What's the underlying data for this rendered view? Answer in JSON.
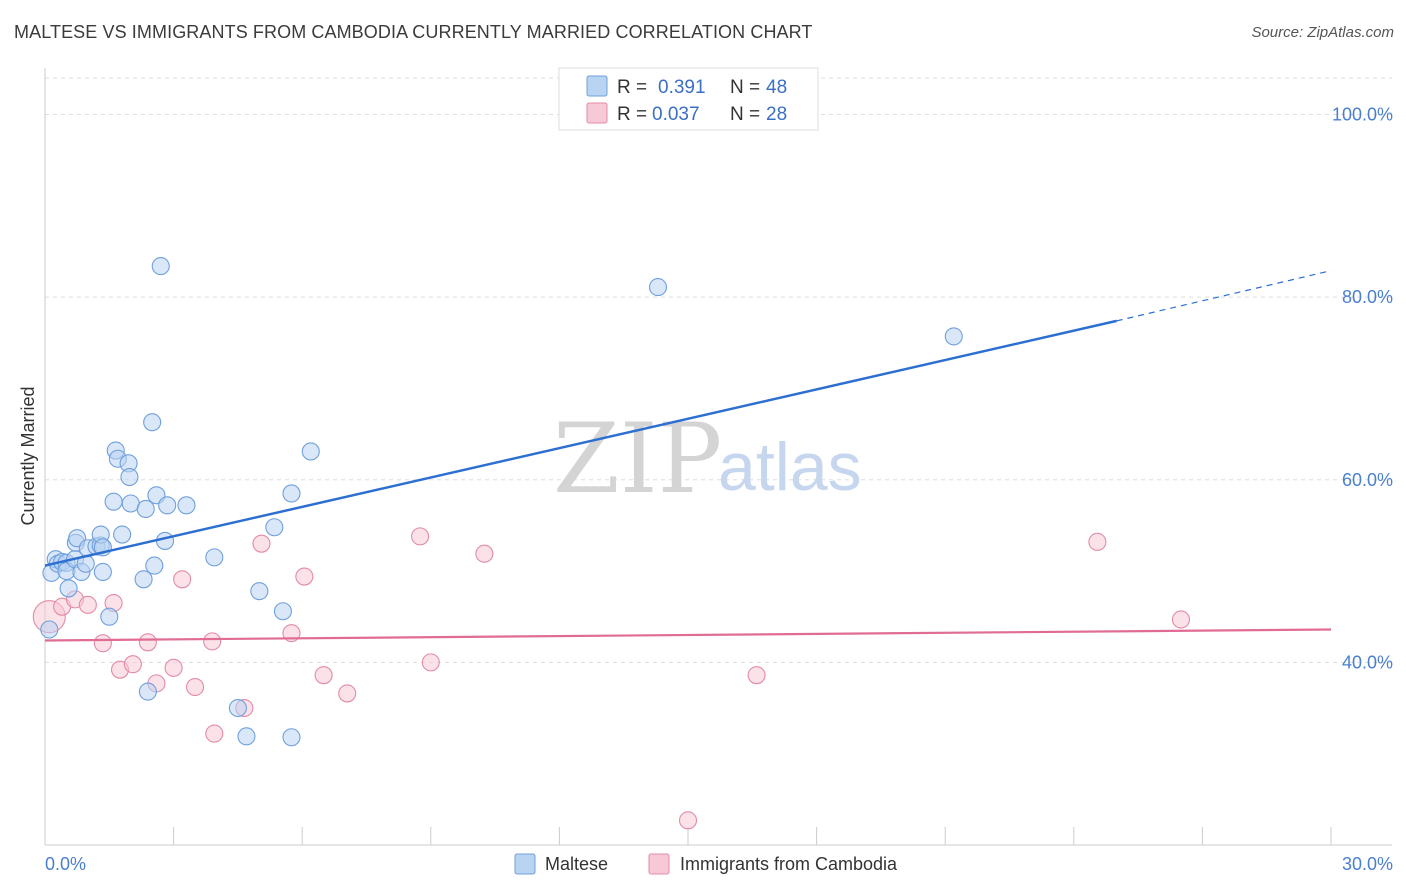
{
  "title": "MALTESE VS IMMIGRANTS FROM CAMBODIA CURRENTLY MARRIED CORRELATION CHART",
  "source": "Source: ZipAtlas.com",
  "watermark": {
    "zip": "ZIP",
    "atlas": "atlas"
  },
  "colors": {
    "maltese_fill": "#b9d3f3",
    "maltese_stroke": "#6fa0dc",
    "maltese_line": "#2c6fd1",
    "cambodia_fill": "#f7c9d6",
    "cambodia_stroke": "#e38ba6",
    "cambodia_line": "#e06b94",
    "grid": "#dddddd",
    "tick_label": "#4a7fd0"
  },
  "legend": {
    "rows": [
      {
        "r_label": "R =",
        "r_value": "0.391",
        "n_label": "N =",
        "n_value": "48"
      },
      {
        "r_label": "R =",
        "r_value": "0.037",
        "n_label": "N =",
        "n_value": "28"
      }
    ]
  },
  "bottom_legend": [
    "Maltese",
    "Immigrants from Cambodia"
  ],
  "chart_data": {
    "type": "scatter",
    "title": "MALTESE VS IMMIGRANTS FROM CAMBODIA CURRENTLY MARRIED CORRELATION CHART",
    "xlabel": "",
    "ylabel": "Currently Married",
    "xlim": [
      0,
      30
    ],
    "ylim": [
      20,
      104
    ],
    "x_tick_labels": [
      "0.0%",
      "30.0%"
    ],
    "y_ticks": [
      40,
      60,
      80,
      100
    ],
    "y_tick_labels": [
      "40.0%",
      "60.0%",
      "80.0%",
      "100.0%"
    ],
    "series": [
      {
        "name": "Maltese",
        "R": 0.391,
        "N": 48,
        "trend": {
          "x0": 0,
          "y0": 50.6,
          "x1": 25.0,
          "y1": 77.4,
          "dash_to_x": 30.0,
          "dash_to_y": 82.9
        },
        "points": [
          [
            0.1,
            43.6
          ],
          [
            0.15,
            49.8
          ],
          [
            0.25,
            51.3
          ],
          [
            0.3,
            50.8
          ],
          [
            0.4,
            51.0
          ],
          [
            0.5,
            50.9
          ],
          [
            0.5,
            50.0
          ],
          [
            0.55,
            48.1
          ],
          [
            0.7,
            51.3
          ],
          [
            0.72,
            53.1
          ],
          [
            0.75,
            53.6
          ],
          [
            0.85,
            49.9
          ],
          [
            0.95,
            50.8
          ],
          [
            1.0,
            52.5
          ],
          [
            1.2,
            52.7
          ],
          [
            1.3,
            52.8
          ],
          [
            1.3,
            54.0
          ],
          [
            1.35,
            49.9
          ],
          [
            1.35,
            52.6
          ],
          [
            1.5,
            45.0
          ],
          [
            1.6,
            57.6
          ],
          [
            1.65,
            63.2
          ],
          [
            1.7,
            62.3
          ],
          [
            1.8,
            54.0
          ],
          [
            1.95,
            61.8
          ],
          [
            1.97,
            60.3
          ],
          [
            2.0,
            57.4
          ],
          [
            2.3,
            49.1
          ],
          [
            2.35,
            56.8
          ],
          [
            2.4,
            36.8
          ],
          [
            2.5,
            66.3
          ],
          [
            2.55,
            50.6
          ],
          [
            2.6,
            58.3
          ],
          [
            2.7,
            83.4
          ],
          [
            2.8,
            53.3
          ],
          [
            2.85,
            57.2
          ],
          [
            3.3,
            57.2
          ],
          [
            3.95,
            51.5
          ],
          [
            4.5,
            35.0
          ],
          [
            4.7,
            31.9
          ],
          [
            5.0,
            47.8
          ],
          [
            5.35,
            54.8
          ],
          [
            5.55,
            45.6
          ],
          [
            5.75,
            58.5
          ],
          [
            5.75,
            31.8
          ],
          [
            6.2,
            63.1
          ],
          [
            14.3,
            81.1
          ],
          [
            21.2,
            75.7
          ]
        ]
      },
      {
        "name": "Immigrants from Cambodia",
        "R": 0.037,
        "N": 28,
        "trend": {
          "x0": 0,
          "y0": 42.4,
          "x1": 30,
          "y1": 43.6
        },
        "points": [
          [
            0.1,
            45.0
          ],
          [
            0.4,
            46.1
          ],
          [
            0.7,
            46.9
          ],
          [
            1.0,
            46.3
          ],
          [
            1.35,
            42.1
          ],
          [
            1.6,
            46.5
          ],
          [
            1.75,
            39.2
          ],
          [
            2.05,
            39.8
          ],
          [
            2.4,
            42.2
          ],
          [
            2.6,
            37.7
          ],
          [
            3.0,
            39.4
          ],
          [
            3.2,
            49.1
          ],
          [
            3.5,
            37.3
          ],
          [
            3.9,
            42.3
          ],
          [
            3.95,
            32.2
          ],
          [
            4.65,
            35.0
          ],
          [
            5.05,
            53.0
          ],
          [
            5.75,
            43.2
          ],
          [
            6.05,
            49.4
          ],
          [
            6.5,
            38.6
          ],
          [
            7.05,
            36.6
          ],
          [
            8.75,
            53.8
          ],
          [
            9.0,
            40.0
          ],
          [
            10.25,
            51.9
          ],
          [
            15.0,
            22.7
          ],
          [
            16.6,
            38.6
          ],
          [
            24.55,
            53.2
          ],
          [
            26.5,
            44.7
          ]
        ]
      }
    ]
  }
}
